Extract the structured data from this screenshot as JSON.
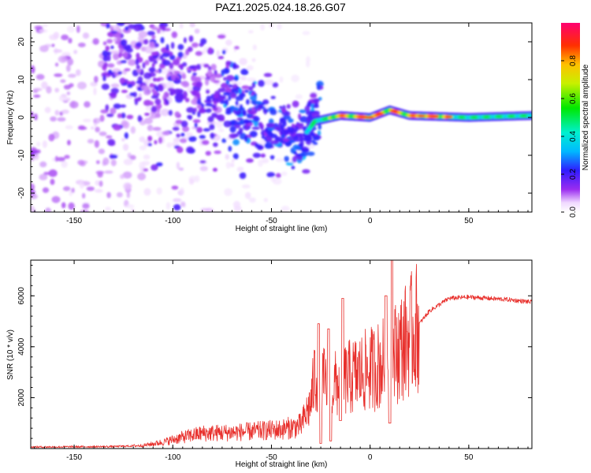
{
  "title": "PAZ1.2025.024.18.26.G07",
  "chart_data": [
    {
      "type": "heatmap",
      "xlabel": "Height of straight line (km)",
      "ylabel": "Frequency (Hz)",
      "xlim": [
        -172,
        82
      ],
      "ylim": [
        -25,
        25
      ],
      "x_ticks": [
        -150,
        -100,
        -50,
        0,
        50
      ],
      "y_ticks": [
        -20,
        -10,
        0,
        10,
        20
      ],
      "colorbar": {
        "label": "Normalized spectral amplitude",
        "range": [
          0,
          1
        ],
        "ticks": [
          "0.0",
          "0.2",
          "0.4",
          "0.6",
          "0.8"
        ],
        "tick_values": [
          0.0,
          0.2,
          0.4,
          0.6,
          0.8
        ]
      },
      "ridge_center_freq": [
        {
          "x": -120,
          "y": 14
        },
        {
          "x": -100,
          "y": 9
        },
        {
          "x": -80,
          "y": 6
        },
        {
          "x": -60,
          "y": 1
        },
        {
          "x": -45,
          "y": -4
        },
        {
          "x": -35,
          "y": -6
        },
        {
          "x": -28,
          "y": -1
        },
        {
          "x": -15,
          "y": 0.5
        },
        {
          "x": 0,
          "y": 0
        },
        {
          "x": 10,
          "y": 2
        },
        {
          "x": 20,
          "y": 0.5
        },
        {
          "x": 50,
          "y": 0
        },
        {
          "x": 82,
          "y": 0.5
        }
      ],
      "grid": false
    },
    {
      "type": "line",
      "xlabel": "Height of straight line (km)",
      "ylabel": "SNR (10 * v/v)",
      "xlim": [
        -172,
        82
      ],
      "ylim": [
        0,
        7400
      ],
      "x_ticks": [
        -150,
        -100,
        -50,
        0,
        50
      ],
      "y_ticks": [
        2000,
        4000,
        6000
      ],
      "series_color": "#e8302c",
      "envelope": [
        {
          "x": -172,
          "y": 60
        },
        {
          "x": -150,
          "y": 70
        },
        {
          "x": -130,
          "y": 80
        },
        {
          "x": -115,
          "y": 120
        },
        {
          "x": -105,
          "y": 250
        },
        {
          "x": -95,
          "y": 450
        },
        {
          "x": -85,
          "y": 600
        },
        {
          "x": -75,
          "y": 620
        },
        {
          "x": -65,
          "y": 650
        },
        {
          "x": -55,
          "y": 700
        },
        {
          "x": -45,
          "y": 750
        },
        {
          "x": -35,
          "y": 900
        },
        {
          "x": -30,
          "y": 1800
        },
        {
          "x": -28,
          "y": 2900
        },
        {
          "x": -20,
          "y": 2400
        },
        {
          "x": -10,
          "y": 2800
        },
        {
          "x": 0,
          "y": 3100
        },
        {
          "x": 10,
          "y": 3500
        },
        {
          "x": 20,
          "y": 4400
        },
        {
          "x": 30,
          "y": 5400
        },
        {
          "x": 40,
          "y": 5900
        },
        {
          "x": 50,
          "y": 5950
        },
        {
          "x": 60,
          "y": 5900
        },
        {
          "x": 70,
          "y": 5850
        },
        {
          "x": 82,
          "y": 5750
        }
      ],
      "spikes": [
        {
          "x": -26,
          "y": 4900
        },
        {
          "x": -21,
          "y": 4700
        },
        {
          "x": -14,
          "y": 5900
        },
        {
          "x": 8,
          "y": 6000
        },
        {
          "x": 11,
          "y": 7400
        }
      ],
      "dips": [
        {
          "x": -25,
          "y": 200
        },
        {
          "x": -20,
          "y": 300
        },
        {
          "x": -15,
          "y": 1100
        },
        {
          "x": 10,
          "y": 1000
        }
      ],
      "grid": false
    }
  ]
}
